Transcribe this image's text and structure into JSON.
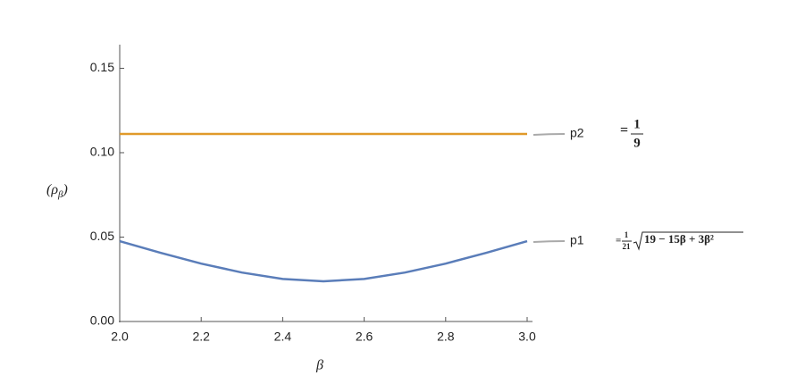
{
  "chart_data": {
    "type": "line",
    "xlabel": "β",
    "ylabel": {
      "open": "(",
      "symbol": "ρ",
      "subscript": "β",
      "close": ")"
    },
    "x": [
      2.0,
      2.1,
      2.2,
      2.3,
      2.4,
      2.5,
      2.6,
      2.7,
      2.8,
      2.9,
      3.0
    ],
    "series": [
      {
        "name": "p1",
        "color": "#5a7db9",
        "values": [
          0.0476,
          0.0407,
          0.0343,
          0.029,
          0.0252,
          0.0238,
          0.0252,
          0.029,
          0.0343,
          0.0407,
          0.0476
        ]
      },
      {
        "name": "p2",
        "color": "#e09a2a",
        "values": [
          0.1111,
          0.1111,
          0.1111,
          0.1111,
          0.1111,
          0.1111,
          0.1111,
          0.1111,
          0.1111,
          0.1111,
          0.1111
        ]
      }
    ],
    "annotations": [
      {
        "series": "p1",
        "prefix": "=",
        "numerator": "1",
        "denominator": "21",
        "radicand": "19 − 15β + 3β²"
      },
      {
        "series": "p2",
        "prefix": "=",
        "numerator": "1",
        "denominator": "9"
      }
    ],
    "xlim": [
      2.0,
      3.0
    ],
    "xticks": [
      {
        "value": 2.0,
        "label": "2.0"
      },
      {
        "value": 2.2,
        "label": "2.2"
      },
      {
        "value": 2.4,
        "label": "2.4"
      },
      {
        "value": 2.6,
        "label": "2.6"
      },
      {
        "value": 2.8,
        "label": "2.8"
      },
      {
        "value": 3.0,
        "label": "3.0"
      }
    ],
    "ylim": [
      0,
      0.164
    ],
    "yticks": [
      {
        "value": 0,
        "label": "0.00"
      },
      {
        "value": 0.05,
        "label": "0.05"
      },
      {
        "value": 0.1,
        "label": "0.10"
      },
      {
        "value": 0.15,
        "label": "0.15"
      }
    ],
    "grid": false
  }
}
